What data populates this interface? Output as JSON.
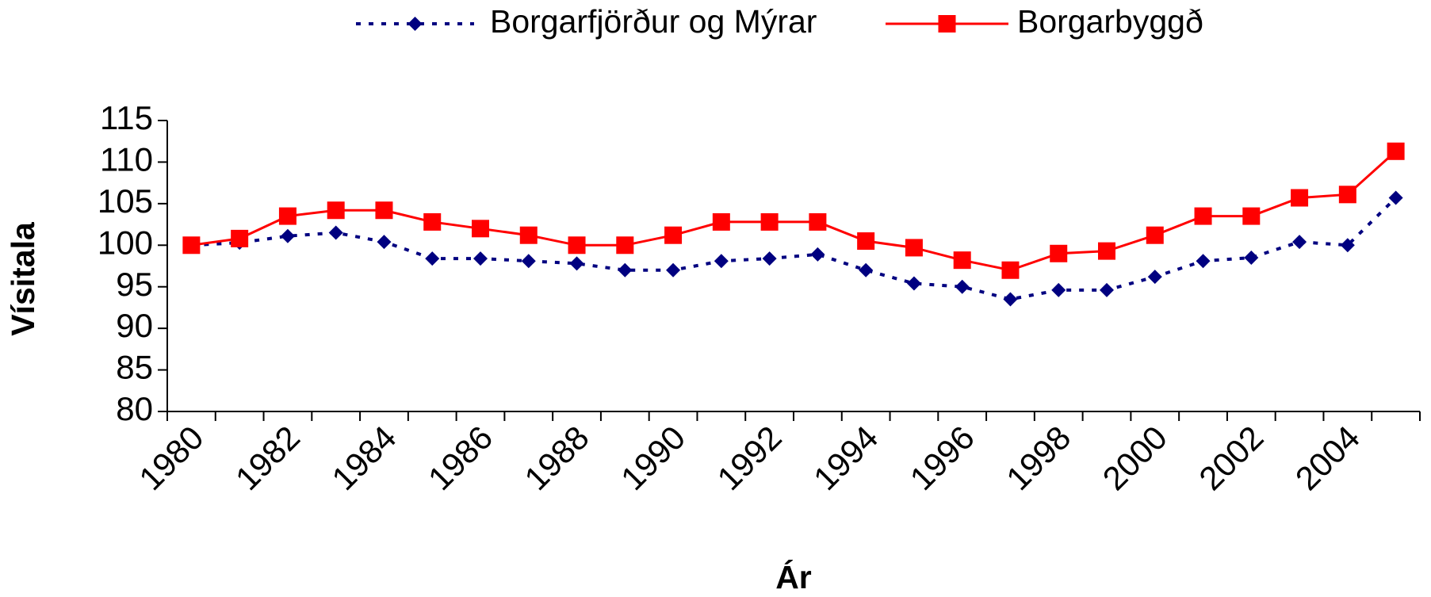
{
  "chart_data": {
    "type": "line",
    "x_label": "Ár",
    "y_label": "Vísitala",
    "categories": [
      "1980",
      null,
      "1982",
      null,
      "1984",
      null,
      "1986",
      null,
      "1988",
      null,
      "1990",
      null,
      "1992",
      null,
      "1994",
      null,
      "1996",
      null,
      "1998",
      null,
      "2000",
      null,
      "2002",
      null,
      "2004",
      null
    ],
    "series": [
      {
        "name": "Borgarfjörður og Mýrar",
        "color": "#000080",
        "dash": "dotted",
        "marker": "diamond",
        "values": [
          100,
          100.3,
          101.1,
          101.5,
          100.4,
          98.4,
          98.4,
          98.1,
          97.8,
          97,
          97,
          98.1,
          98.4,
          98.9,
          97,
          95.4,
          95,
          93.5,
          94.6,
          94.6,
          96.2,
          98.1,
          98.5,
          100.4,
          100,
          105.7
        ]
      },
      {
        "name": "Borgarbyggð",
        "color": "#ff0000",
        "dash": "solid",
        "marker": "square",
        "values": [
          100,
          100.8,
          103.5,
          104.2,
          104.2,
          102.8,
          102,
          101.2,
          100,
          100,
          101.2,
          102.8,
          102.8,
          102.8,
          100.5,
          99.7,
          98.2,
          97,
          99,
          99.3,
          101.2,
          103.5,
          103.5,
          105.7,
          106.1,
          111.3
        ]
      }
    ],
    "ylim": [
      80,
      115
    ],
    "yticks": [
      80,
      85,
      90,
      95,
      100,
      105,
      110,
      115
    ],
    "grid": false,
    "legend": "top"
  }
}
